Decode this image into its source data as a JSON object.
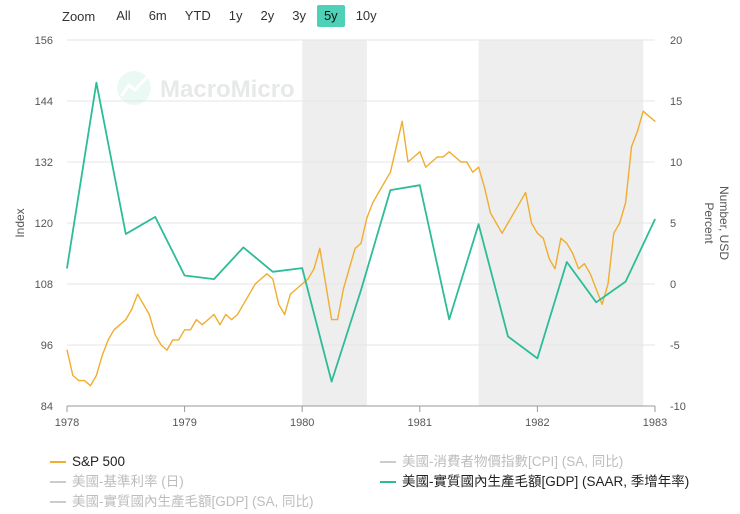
{
  "toolbar": {
    "zoom_label": "Zoom",
    "buttons": [
      "All",
      "6m",
      "YTD",
      "1y",
      "2y",
      "3y",
      "5y",
      "10y"
    ],
    "active": "5y"
  },
  "watermark": "MacroMicro",
  "colors": {
    "sp500": "#f0ad30",
    "gdp": "#2dbd96",
    "inactive": "#cccccc",
    "recession_band": "#eeeeee",
    "zoom_active": "#4fd1b7"
  },
  "chart_data": {
    "type": "line",
    "x_ticks": [
      "1978",
      "1979",
      "1980",
      "1981",
      "1982",
      "1983"
    ],
    "xlim": [
      1978.0,
      1983.0
    ],
    "left_axis": {
      "label": "Index",
      "ylim": [
        84,
        156
      ],
      "ticks": [
        "84",
        "96",
        "108",
        "120",
        "132",
        "144",
        "156"
      ]
    },
    "right_axis": {
      "label": "Number, USD",
      "label2": "Percent",
      "ylim": [
        -10,
        20
      ],
      "ticks": [
        "-10",
        "-5",
        "0",
        "5",
        "10",
        "15",
        "20"
      ]
    },
    "recession_bands": [
      [
        1980.0,
        1980.55
      ],
      [
        1981.5,
        1982.9
      ]
    ],
    "series": [
      {
        "name": "S&P 500",
        "axis": "left",
        "x": [
          1978.0,
          1978.05,
          1978.1,
          1978.15,
          1978.2,
          1978.25,
          1978.3,
          1978.35,
          1978.4,
          1978.45,
          1978.5,
          1978.55,
          1978.6,
          1978.65,
          1978.7,
          1978.75,
          1978.8,
          1978.85,
          1978.9,
          1978.95,
          1979.0,
          1979.05,
          1979.1,
          1979.15,
          1979.2,
          1979.25,
          1979.3,
          1979.35,
          1979.4,
          1979.45,
          1979.5,
          1979.55,
          1979.6,
          1979.65,
          1979.7,
          1979.75,
          1979.8,
          1979.85,
          1979.9,
          1979.95,
          1980.0,
          1980.05,
          1980.1,
          1980.15,
          1980.2,
          1980.25,
          1980.3,
          1980.35,
          1980.4,
          1980.45,
          1980.5,
          1980.55,
          1980.6,
          1980.65,
          1980.7,
          1980.75,
          1980.8,
          1980.85,
          1980.9,
          1980.95,
          1981.0,
          1981.05,
          1981.1,
          1981.15,
          1981.2,
          1981.25,
          1981.3,
          1981.35,
          1981.4,
          1981.45,
          1981.5,
          1981.55,
          1981.6,
          1981.65,
          1981.7,
          1981.75,
          1981.8,
          1981.85,
          1981.9,
          1981.95,
          1982.0,
          1982.05,
          1982.1,
          1982.15,
          1982.2,
          1982.25,
          1982.3,
          1982.35,
          1982.4,
          1982.45,
          1982.5,
          1982.55,
          1982.6,
          1982.65,
          1982.7,
          1982.75,
          1982.8,
          1982.85,
          1982.9,
          1982.95,
          1983.0
        ],
        "values": [
          95,
          90,
          89,
          89,
          88,
          90,
          94,
          97,
          99,
          100,
          101,
          103,
          106,
          104,
          102,
          98,
          96,
          95,
          97,
          97,
          99,
          99,
          101,
          100,
          101,
          102,
          100,
          102,
          101,
          102,
          104,
          106,
          108,
          109,
          110,
          109,
          104,
          102,
          106,
          107,
          108,
          109,
          111,
          115,
          108,
          101,
          101,
          107,
          111,
          115,
          116,
          121,
          124,
          126,
          128,
          130,
          135,
          140,
          132,
          133,
          134,
          131,
          132,
          133,
          133,
          134,
          133,
          132,
          132,
          130,
          131,
          127,
          122,
          120,
          118,
          120,
          122,
          124,
          126,
          120,
          118,
          117,
          113,
          111,
          117,
          116,
          114,
          111,
          112,
          110,
          107,
          104,
          108,
          118,
          120,
          124,
          135,
          138,
          142,
          141,
          140
        ]
      },
      {
        "name": "美國-實質國內生產毛額[GDP] (SAAR, 季增年率)",
        "axis": "right",
        "x": [
          1978.0,
          1978.25,
          1978.5,
          1978.75,
          1979.0,
          1979.25,
          1979.5,
          1979.75,
          1980.0,
          1980.25,
          1980.5,
          1980.75,
          1981.0,
          1981.25,
          1981.5,
          1981.75,
          1982.0,
          1982.25,
          1982.5,
          1982.75,
          1983.0
        ],
        "values": [
          1.3,
          16.5,
          4.1,
          5.5,
          0.7,
          0.4,
          3.0,
          1.0,
          1.3,
          -8.0,
          -0.5,
          7.7,
          8.1,
          -2.9,
          4.9,
          -4.3,
          -6.1,
          1.8,
          -1.5,
          0.2,
          5.3
        ]
      }
    ],
    "legend": [
      {
        "label": "S&P 500",
        "active": true
      },
      {
        "label": "美國-消費者物價指數[CPI] (SA, 同比)",
        "active": false
      },
      {
        "label": "美國-基準利率 (日)",
        "active": false
      },
      {
        "label": "美國-實質國內生產毛額[GDP] (SAAR, 季增年率)",
        "active": true
      },
      {
        "label": "美國-實質國內生產毛額[GDP] (SA, 同比)",
        "active": false
      }
    ]
  }
}
